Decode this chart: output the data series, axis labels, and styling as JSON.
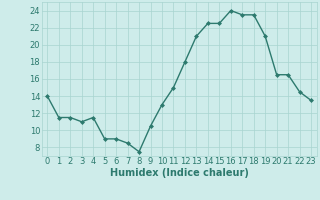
{
  "x": [
    0,
    1,
    2,
    3,
    4,
    5,
    6,
    7,
    8,
    9,
    10,
    11,
    12,
    13,
    14,
    15,
    16,
    17,
    18,
    19,
    20,
    21,
    22,
    23
  ],
  "y": [
    14.0,
    11.5,
    11.5,
    11.0,
    11.5,
    9.0,
    9.0,
    8.5,
    7.5,
    10.5,
    13.0,
    15.0,
    18.0,
    21.0,
    22.5,
    22.5,
    24.0,
    23.5,
    23.5,
    21.0,
    16.5,
    16.5,
    14.5,
    13.5
  ],
  "line_color": "#2d7a6e",
  "marker": "D",
  "marker_size": 2.0,
  "linewidth": 1.0,
  "bg_color": "#ceecea",
  "grid_color": "#a8d4d0",
  "xlabel": "Humidex (Indice chaleur)",
  "xlabel_fontsize": 7,
  "tick_fontsize": 6,
  "ylim": [
    7,
    25
  ],
  "yticks": [
    8,
    10,
    12,
    14,
    16,
    18,
    20,
    22,
    24
  ],
  "xticks": [
    0,
    1,
    2,
    3,
    4,
    5,
    6,
    7,
    8,
    9,
    10,
    11,
    12,
    13,
    14,
    15,
    16,
    17,
    18,
    19,
    20,
    21,
    22,
    23
  ],
  "xlim": [
    -0.5,
    23.5
  ]
}
